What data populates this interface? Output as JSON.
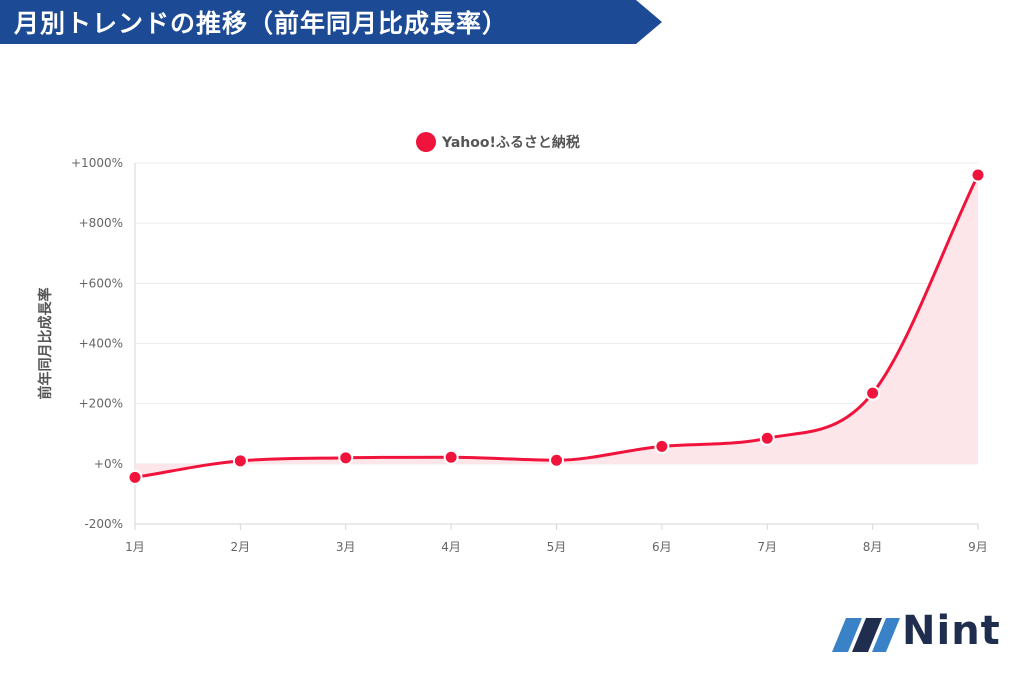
{
  "header": {
    "title": "月別トレンドの推移（前年同月比成長率）",
    "banner_color": "#1d4a94"
  },
  "chart_data": {
    "type": "line",
    "x": [
      "1月",
      "2月",
      "3月",
      "4月",
      "5月",
      "6月",
      "7月",
      "8月",
      "9月"
    ],
    "series": [
      {
        "name": "Yahoo!ふるさと納税",
        "values": [
          -45,
          10,
          20,
          22,
          12,
          58,
          85,
          235,
          960
        ],
        "color": "#f0143c",
        "fill_color": "#fde6e9"
      }
    ],
    "ylabel": "前年同月比成長率",
    "ylim": [
      -200,
      1000
    ],
    "yticks": [
      -200,
      0,
      200,
      400,
      600,
      800,
      1000
    ],
    "ytick_labels": [
      "-200%",
      "+0%",
      "+200%",
      "+400%",
      "+600%",
      "+800%",
      "+1000%"
    ],
    "grid": true,
    "legend_position": "top-center"
  },
  "brand": {
    "logo_name": "Nint",
    "logo_color": "#1f2d4f",
    "logo_accent": "#3a82c8"
  }
}
